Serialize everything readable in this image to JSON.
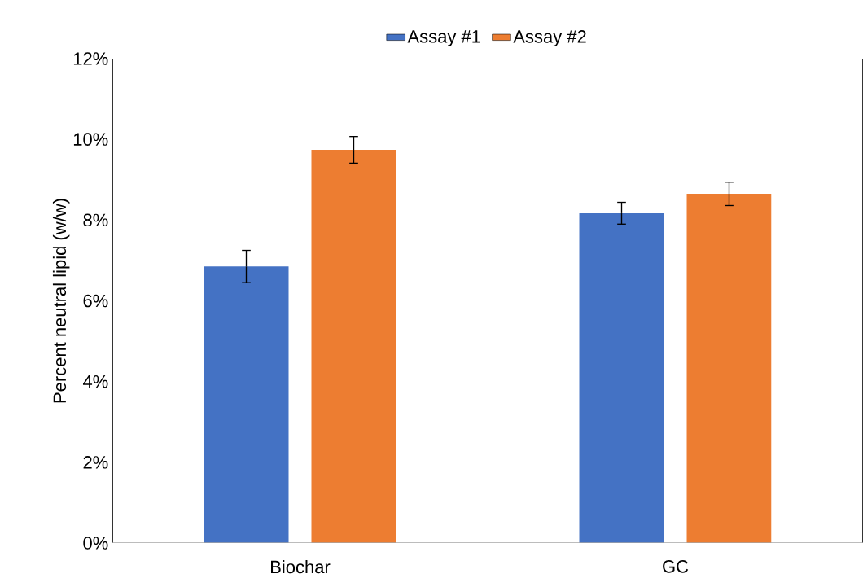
{
  "chart_data": {
    "type": "bar",
    "ylabel": "Percent neutral lipid (w/w)",
    "categories": [
      "Biochar",
      "GC"
    ],
    "series": [
      {
        "name": "Assay #1",
        "color": "#4472c4",
        "values": [
          6.85,
          8.17
        ],
        "errors": [
          0.4,
          0.27
        ]
      },
      {
        "name": "Assay #2",
        "color": "#ed7d31",
        "values": [
          9.74,
          8.65
        ],
        "errors": [
          0.33,
          0.29
        ]
      }
    ],
    "ylim": [
      0,
      12
    ],
    "yticks": [
      {
        "value": 0,
        "label": "0%"
      },
      {
        "value": 2,
        "label": "2%"
      },
      {
        "value": 4,
        "label": "4%"
      },
      {
        "value": 6,
        "label": "6%"
      },
      {
        "value": 8,
        "label": "8%"
      },
      {
        "value": 10,
        "label": "10%"
      },
      {
        "value": 12,
        "label": "12%"
      }
    ],
    "grid": false,
    "legend": "top"
  }
}
